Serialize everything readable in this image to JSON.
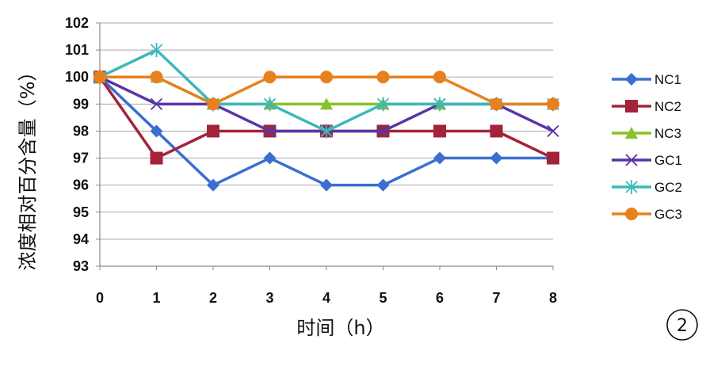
{
  "chart_data": {
    "type": "line",
    "x": [
      0,
      1,
      2,
      3,
      4,
      5,
      6,
      7,
      8
    ],
    "xlim": [
      0,
      8
    ],
    "ylim": [
      93,
      102
    ],
    "yticks": [
      93,
      94,
      95,
      96,
      97,
      98,
      99,
      100,
      101,
      102
    ],
    "xlabel": "时间（h）",
    "ylabel": "浓度相对百分含量（%）",
    "grid": "horizontal",
    "legend_position": "right",
    "panel_label": "2",
    "series": [
      {
        "name": "NC1",
        "color": "#3a6fd0",
        "marker": "diamond",
        "values": [
          100,
          98,
          96,
          97,
          96,
          96,
          97,
          97,
          97
        ]
      },
      {
        "name": "NC2",
        "color": "#a3243a",
        "marker": "square",
        "values": [
          100,
          97,
          98,
          98,
          98,
          98,
          98,
          98,
          97
        ]
      },
      {
        "name": "NC3",
        "color": "#86c22a",
        "marker": "triangle",
        "values": [
          100,
          100,
          99,
          99,
          99,
          99,
          99,
          99,
          99
        ]
      },
      {
        "name": "GC1",
        "color": "#5a35a5",
        "marker": "x",
        "values": [
          100,
          99,
          99,
          98,
          98,
          98,
          99,
          99,
          98
        ]
      },
      {
        "name": "GC2",
        "color": "#3cb8b8",
        "marker": "star",
        "values": [
          100,
          101,
          99,
          99,
          98,
          99,
          99,
          99,
          99
        ]
      },
      {
        "name": "GC3",
        "color": "#e8801e",
        "marker": "circle",
        "values": [
          100,
          100,
          99,
          100,
          100,
          100,
          100,
          99,
          99
        ]
      }
    ]
  }
}
